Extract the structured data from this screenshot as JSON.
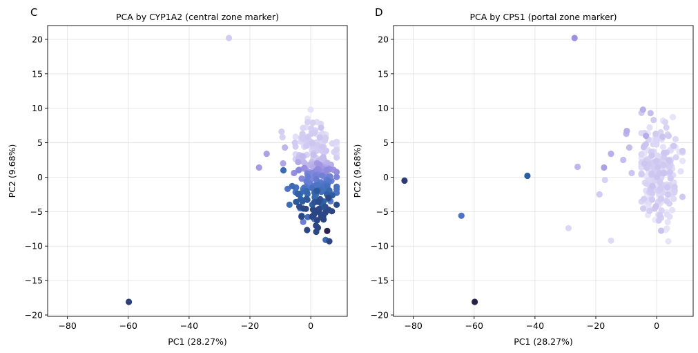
{
  "chart_data": [
    {
      "type": "scatter",
      "panel_label": "C",
      "title": "PCA by CYP1A2 (central zone marker)",
      "xlabel": "PC1 (28.27%)",
      "ylabel": "PC2 (9.68%)",
      "xlim": [
        -86.5,
        12
      ],
      "ylim": [
        -20.2,
        22
      ],
      "xticks": [
        -80,
        -60,
        -40,
        -20,
        0
      ],
      "xtick_labels": [
        "−80",
        "−60",
        "−40",
        "−20",
        "0"
      ],
      "yticks": [
        -20,
        -15,
        -10,
        -5,
        0,
        5,
        10,
        15,
        20
      ],
      "ytick_labels": [
        "−20",
        "−15",
        "−10",
        "−5",
        "0",
        "5",
        "10",
        "15",
        "20"
      ],
      "grid": true,
      "color_scale": [
        "#f0eefb",
        "#cfc8f1",
        "#9c8fe0",
        "#5a7ad0",
        "#2f64a8",
        "#2b3f7a",
        "#2a1f45"
      ],
      "cloud": {
        "x_center": 1.5,
        "y_center": 0.5,
        "x_spread": 4.2,
        "y_spread": 4.6,
        "count": 230
      },
      "points": [
        {
          "x": -59.8,
          "y": -18.1,
          "c": 0.84
        },
        {
          "x": -26.9,
          "y": 20.2,
          "c": 0.15
        },
        {
          "x": -17.0,
          "y": 1.4,
          "c": 0.3
        },
        {
          "x": -14.5,
          "y": 3.4,
          "c": 0.28
        },
        {
          "x": -9.6,
          "y": 6.6,
          "c": 0.14
        },
        {
          "x": -9.3,
          "y": 5.8,
          "c": 0.12
        },
        {
          "x": -9.1,
          "y": 2.0,
          "c": 0.27
        },
        {
          "x": -9.0,
          "y": 1.0,
          "c": 0.62
        },
        {
          "x": -8.5,
          "y": 4.3,
          "c": 0.22
        },
        {
          "x": -7.6,
          "y": -1.7,
          "c": 0.55
        },
        {
          "x": -7.0,
          "y": -4.0,
          "c": 0.6
        },
        {
          "x": -6.1,
          "y": -1.3,
          "c": 0.62
        },
        {
          "x": -5.5,
          "y": 0.6,
          "c": 0.35
        },
        {
          "x": -5.2,
          "y": 5.0,
          "c": 0.15
        },
        {
          "x": -3.5,
          "y": -4.5,
          "c": 0.58
        },
        {
          "x": -3.0,
          "y": -5.6,
          "c": 0.62
        },
        {
          "x": -2.5,
          "y": -6.5,
          "c": 0.45
        },
        {
          "x": -1.5,
          "y": -3.2,
          "c": 0.7
        },
        {
          "x": -1.0,
          "y": -5.8,
          "c": 0.6
        },
        {
          "x": 0.5,
          "y": -4.0,
          "c": 0.68
        },
        {
          "x": 1.2,
          "y": -6.1,
          "c": 0.55
        },
        {
          "x": 2.0,
          "y": -2.0,
          "c": 0.72
        },
        {
          "x": 3.1,
          "y": -3.2,
          "c": 0.75
        },
        {
          "x": 3.4,
          "y": -5.5,
          "c": 0.72
        },
        {
          "x": 4.2,
          "y": -4.4,
          "c": 0.66
        },
        {
          "x": 4.9,
          "y": -9.1,
          "c": 0.62
        },
        {
          "x": 5.4,
          "y": -7.8,
          "c": 0.98
        },
        {
          "x": 5.8,
          "y": -3.0,
          "c": 0.78
        },
        {
          "x": 6.5,
          "y": -3.5,
          "c": 0.5
        },
        {
          "x": 7.2,
          "y": -2.5,
          "c": 0.45
        },
        {
          "x": 0.0,
          "y": 9.8,
          "c": 0.05
        },
        {
          "x": -1.0,
          "y": 8.5,
          "c": 0.05
        },
        {
          "x": 2.0,
          "y": 8.0,
          "c": 0.08
        }
      ]
    },
    {
      "type": "scatter",
      "panel_label": "D",
      "title": "PCA by CPS1 (portal zone marker)",
      "xlabel": "PC1 (28.27%)",
      "ylabel": "PC2 (9.68%)",
      "xlim": [
        -86.5,
        12
      ],
      "ylim": [
        -20.2,
        22
      ],
      "xticks": [
        -80,
        -60,
        -40,
        -20,
        0
      ],
      "xtick_labels": [
        "−80",
        "−60",
        "−40",
        "−20",
        "0"
      ],
      "yticks": [
        -20,
        -15,
        -10,
        -5,
        0,
        5,
        10,
        15,
        20
      ],
      "ytick_labels": [
        "−20",
        "−15",
        "−10",
        "−5",
        "0",
        "5",
        "10",
        "15",
        "20"
      ],
      "grid": true,
      "color_scale": [
        "#f0eefb",
        "#cfc8f1",
        "#9c8fe0",
        "#5a7ad0",
        "#2f64a8",
        "#2b3f7a",
        "#2a1f45"
      ],
      "cloud": {
        "x_center": 1.0,
        "y_center": 0.5,
        "x_spread": 3.8,
        "y_spread": 4.6,
        "count": 230
      },
      "points": [
        {
          "x": -82.9,
          "y": -0.5,
          "c": 0.85
        },
        {
          "x": -64.2,
          "y": -5.6,
          "c": 0.55
        },
        {
          "x": -59.8,
          "y": -18.1,
          "c": 0.99
        },
        {
          "x": -42.5,
          "y": 0.2,
          "c": 0.7
        },
        {
          "x": -27.0,
          "y": 20.2,
          "c": 0.33
        },
        {
          "x": -29.0,
          "y": -7.4,
          "c": 0.1
        },
        {
          "x": -26.0,
          "y": 1.5,
          "c": 0.22
        },
        {
          "x": -17.3,
          "y": 1.4,
          "c": 0.28
        },
        {
          "x": -17.0,
          "y": -0.4,
          "c": 0.12
        },
        {
          "x": -15.0,
          "y": 3.4,
          "c": 0.24
        },
        {
          "x": -15.0,
          "y": -9.2,
          "c": 0.08
        },
        {
          "x": -18.8,
          "y": -2.5,
          "c": 0.15
        },
        {
          "x": -11.0,
          "y": 2.5,
          "c": 0.2
        },
        {
          "x": -9.8,
          "y": 6.7,
          "c": 0.25
        },
        {
          "x": -10.0,
          "y": 6.3,
          "c": 0.22
        },
        {
          "x": -8.2,
          "y": 0.6,
          "c": 0.18
        },
        {
          "x": -9.0,
          "y": 4.3,
          "c": 0.2
        },
        {
          "x": -4.5,
          "y": 9.8,
          "c": 0.24
        },
        {
          "x": -3.5,
          "y": 6.0,
          "c": 0.25
        },
        {
          "x": -2.0,
          "y": 9.3,
          "c": 0.2
        },
        {
          "x": -1.0,
          "y": 8.3,
          "c": 0.15
        }
      ]
    }
  ]
}
